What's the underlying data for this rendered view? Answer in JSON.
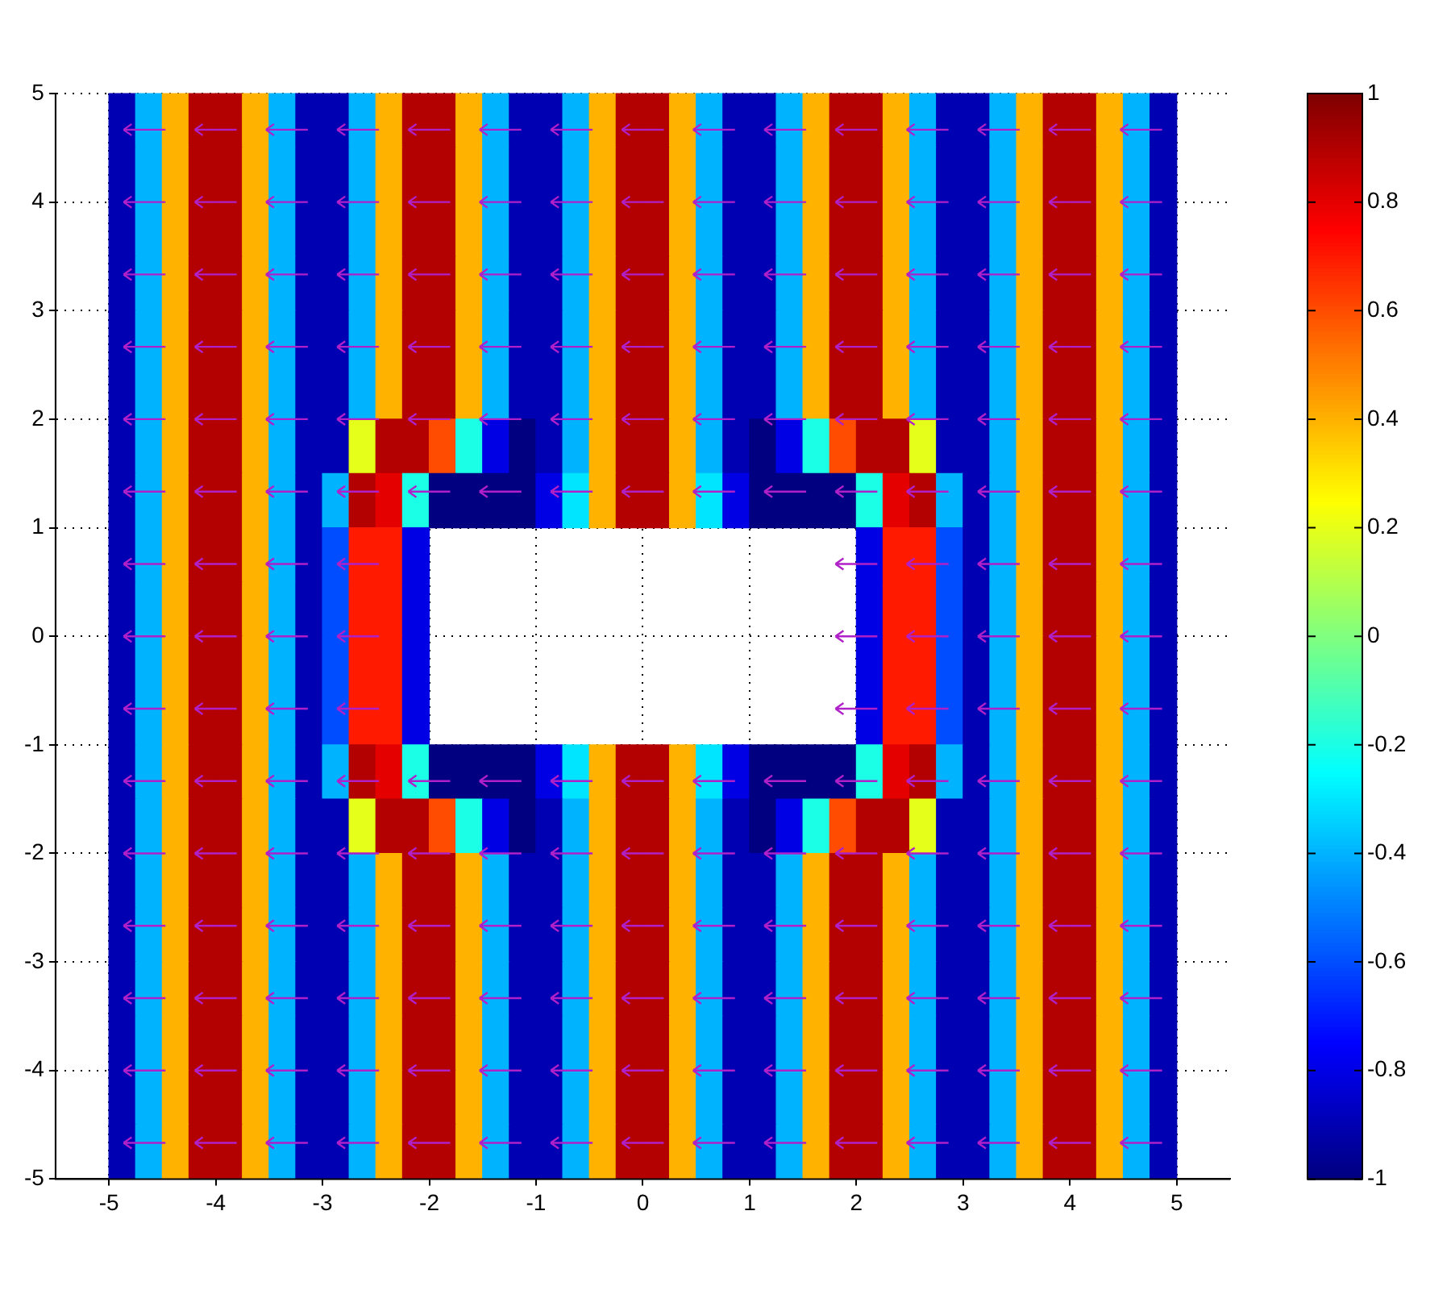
{
  "chart_data": {
    "type": "heatmap",
    "x": [
      -4.875,
      -4.625,
      -4.375,
      -4.125,
      -3.875,
      -3.625,
      -3.375,
      -3.125,
      -2.875,
      -2.625,
      -2.375,
      -2.125,
      -1.875,
      -1.625,
      -1.375,
      -1.125,
      -0.875,
      -0.625,
      -0.375,
      -0.125,
      0.125,
      0.375,
      0.625,
      0.875,
      1.125,
      1.375,
      1.625,
      1.875,
      2.125,
      2.375,
      2.625,
      2.875,
      3.125,
      3.375,
      3.625,
      3.875,
      4.125,
      4.375,
      4.625,
      4.875
    ],
    "y": [
      4.75,
      4.25,
      3.75,
      3.25,
      2.75,
      2.25,
      1.75,
      1.25,
      0.75,
      0.25,
      -0.25,
      -0.75,
      -1.25,
      -1.75,
      -2.25,
      -2.75,
      -3.25,
      -3.75,
      -4.25,
      -4.75
    ],
    "cells": [
      [
        -0.9,
        -0.4,
        0.4,
        0.9,
        0.9,
        0.4,
        -0.4,
        -0.9,
        -0.9,
        -0.4,
        0.4,
        0.9,
        0.9,
        0.4,
        -0.4,
        -0.9,
        -0.9,
        -0.4,
        0.4,
        0.9,
        0.9,
        0.4,
        -0.4,
        -0.9,
        -0.9,
        -0.4,
        0.4,
        0.9,
        0.9,
        0.4,
        -0.4,
        -0.9,
        -0.9,
        -0.4,
        0.4,
        0.9,
        0.9,
        0.4,
        -0.4,
        -0.9
      ],
      [
        -0.9,
        -0.4,
        0.4,
        0.9,
        0.9,
        0.4,
        -0.4,
        -0.9,
        -0.9,
        -0.4,
        0.4,
        0.9,
        0.9,
        0.4,
        -0.4,
        -0.9,
        -0.9,
        -0.4,
        0.4,
        0.9,
        0.9,
        0.4,
        -0.4,
        -0.9,
        -0.9,
        -0.4,
        0.4,
        0.9,
        0.9,
        0.4,
        -0.4,
        -0.9,
        -0.9,
        -0.4,
        0.4,
        0.9,
        0.9,
        0.4,
        -0.4,
        -0.9
      ],
      [
        -0.9,
        -0.4,
        0.4,
        0.9,
        0.9,
        0.4,
        -0.4,
        -0.9,
        -0.9,
        -0.4,
        0.4,
        0.9,
        0.9,
        0.4,
        -0.4,
        -0.9,
        -0.9,
        -0.4,
        0.4,
        0.9,
        0.9,
        0.4,
        -0.4,
        -0.9,
        -0.9,
        -0.4,
        0.4,
        0.9,
        0.9,
        0.4,
        -0.4,
        -0.9,
        -0.9,
        -0.4,
        0.4,
        0.9,
        0.9,
        0.4,
        -0.4,
        -0.9
      ],
      [
        -0.9,
        -0.4,
        0.4,
        0.9,
        0.9,
        0.4,
        -0.4,
        -0.9,
        -0.9,
        -0.4,
        0.4,
        0.9,
        0.9,
        0.4,
        -0.4,
        -0.9,
        -0.9,
        -0.4,
        0.4,
        0.9,
        0.9,
        0.4,
        -0.4,
        -0.9,
        -0.9,
        -0.4,
        0.4,
        0.9,
        0.9,
        0.4,
        -0.4,
        -0.9,
        -0.9,
        -0.4,
        0.4,
        0.9,
        0.9,
        0.4,
        -0.4,
        -0.9
      ],
      [
        -0.9,
        -0.4,
        0.4,
        0.9,
        0.9,
        0.4,
        -0.4,
        -0.9,
        -0.9,
        -0.4,
        0.4,
        0.9,
        0.9,
        0.4,
        -0.4,
        -0.9,
        -0.9,
        -0.4,
        0.4,
        0.9,
        0.9,
        0.4,
        -0.4,
        -0.9,
        -0.9,
        -0.4,
        0.4,
        0.9,
        0.9,
        0.4,
        -0.4,
        -0.9,
        -0.9,
        -0.4,
        0.4,
        0.9,
        0.9,
        0.4,
        -0.4,
        -0.9
      ],
      [
        -0.9,
        -0.4,
        0.4,
        0.9,
        0.9,
        0.4,
        -0.4,
        -0.9,
        -0.9,
        -0.4,
        0.4,
        0.9,
        0.9,
        0.4,
        -0.4,
        -0.9,
        -0.9,
        -0.4,
        0.4,
        0.9,
        0.9,
        0.4,
        -0.4,
        -0.9,
        -0.9,
        -0.4,
        0.4,
        0.9,
        0.9,
        0.4,
        -0.4,
        -0.9,
        -0.9,
        -0.4,
        0.4,
        0.9,
        0.9,
        0.4,
        -0.4,
        -0.9
      ],
      [
        -0.9,
        -0.4,
        0.4,
        0.9,
        0.9,
        0.4,
        -0.4,
        -0.9,
        -0.9,
        0.2,
        0.9,
        0.9,
        0.6,
        -0.2,
        -0.8,
        -1,
        -0.9,
        -0.4,
        0.4,
        0.9,
        0.9,
        0.4,
        -0.4,
        -0.9,
        -1,
        -0.8,
        -0.2,
        0.6,
        0.9,
        0.9,
        0.2,
        -0.9,
        -0.9,
        -0.4,
        0.4,
        0.9,
        0.9,
        0.4,
        -0.4,
        -0.9
      ],
      [
        -0.9,
        -0.4,
        0.4,
        0.9,
        0.9,
        0.4,
        -0.4,
        -0.9,
        -0.4,
        0.9,
        0.8,
        -0.2,
        -1,
        -1,
        -1,
        -1,
        -0.8,
        -0.3,
        0.4,
        0.9,
        0.9,
        0.4,
        -0.3,
        -0.8,
        -1,
        -1,
        -1,
        -1,
        -0.2,
        0.8,
        0.9,
        -0.4,
        -0.9,
        -0.4,
        0.4,
        0.9,
        0.9,
        0.4,
        -0.4,
        -0.9
      ],
      [
        -0.9,
        -0.4,
        0.4,
        0.9,
        0.9,
        0.4,
        -0.4,
        -0.9,
        -0.6,
        0.7,
        0.7,
        -0.8,
        null,
        null,
        null,
        null,
        null,
        null,
        null,
        null,
        null,
        null,
        null,
        null,
        null,
        null,
        null,
        null,
        -0.8,
        0.7,
        0.7,
        -0.6,
        -0.9,
        -0.4,
        0.4,
        0.9,
        0.9,
        0.4,
        -0.4,
        -0.9
      ],
      [
        -0.9,
        -0.4,
        0.4,
        0.9,
        0.9,
        0.4,
        -0.4,
        -0.9,
        -0.6,
        0.7,
        0.7,
        -0.8,
        null,
        null,
        null,
        null,
        null,
        null,
        null,
        null,
        null,
        null,
        null,
        null,
        null,
        null,
        null,
        null,
        -0.8,
        0.7,
        0.7,
        -0.6,
        -0.9,
        -0.4,
        0.4,
        0.9,
        0.9,
        0.4,
        -0.4,
        -0.9
      ],
      [
        -0.9,
        -0.4,
        0.4,
        0.9,
        0.9,
        0.4,
        -0.4,
        -0.9,
        -0.6,
        0.7,
        0.7,
        -0.8,
        null,
        null,
        null,
        null,
        null,
        null,
        null,
        null,
        null,
        null,
        null,
        null,
        null,
        null,
        null,
        null,
        -0.8,
        0.7,
        0.7,
        -0.6,
        -0.9,
        -0.4,
        0.4,
        0.9,
        0.9,
        0.4,
        -0.4,
        -0.9
      ],
      [
        -0.9,
        -0.4,
        0.4,
        0.9,
        0.9,
        0.4,
        -0.4,
        -0.9,
        -0.6,
        0.7,
        0.7,
        -0.8,
        null,
        null,
        null,
        null,
        null,
        null,
        null,
        null,
        null,
        null,
        null,
        null,
        null,
        null,
        null,
        null,
        -0.8,
        0.7,
        0.7,
        -0.6,
        -0.9,
        -0.4,
        0.4,
        0.9,
        0.9,
        0.4,
        -0.4,
        -0.9
      ],
      [
        -0.9,
        -0.4,
        0.4,
        0.9,
        0.9,
        0.4,
        -0.4,
        -0.9,
        -0.4,
        0.9,
        0.8,
        -0.2,
        -1,
        -1,
        -1,
        -1,
        -0.8,
        -0.3,
        0.4,
        0.9,
        0.9,
        0.4,
        -0.3,
        -0.8,
        -1,
        -1,
        -1,
        -1,
        -0.2,
        0.8,
        0.9,
        -0.4,
        -0.9,
        -0.4,
        0.4,
        0.9,
        0.9,
        0.4,
        -0.4,
        -0.9
      ],
      [
        -0.9,
        -0.4,
        0.4,
        0.9,
        0.9,
        0.4,
        -0.4,
        -0.9,
        -0.9,
        0.2,
        0.9,
        0.9,
        0.6,
        -0.2,
        -0.8,
        -1,
        -0.9,
        -0.4,
        0.4,
        0.9,
        0.9,
        0.4,
        -0.4,
        -0.9,
        -1,
        -0.8,
        -0.2,
        0.6,
        0.9,
        0.9,
        0.2,
        -0.9,
        -0.9,
        -0.4,
        0.4,
        0.9,
        0.9,
        0.4,
        -0.4,
        -0.9
      ],
      [
        -0.9,
        -0.4,
        0.4,
        0.9,
        0.9,
        0.4,
        -0.4,
        -0.9,
        -0.9,
        -0.4,
        0.4,
        0.9,
        0.9,
        0.4,
        -0.4,
        -0.9,
        -0.9,
        -0.4,
        0.4,
        0.9,
        0.9,
        0.4,
        -0.4,
        -0.9,
        -0.9,
        -0.4,
        0.4,
        0.9,
        0.9,
        0.4,
        -0.4,
        -0.9,
        -0.9,
        -0.4,
        0.4,
        0.9,
        0.9,
        0.4,
        -0.4,
        -0.9
      ],
      [
        -0.9,
        -0.4,
        0.4,
        0.9,
        0.9,
        0.4,
        -0.4,
        -0.9,
        -0.9,
        -0.4,
        0.4,
        0.9,
        0.9,
        0.4,
        -0.4,
        -0.9,
        -0.9,
        -0.4,
        0.4,
        0.9,
        0.9,
        0.4,
        -0.4,
        -0.9,
        -0.9,
        -0.4,
        0.4,
        0.9,
        0.9,
        0.4,
        -0.4,
        -0.9,
        -0.9,
        -0.4,
        0.4,
        0.9,
        0.9,
        0.4,
        -0.4,
        -0.9
      ],
      [
        -0.9,
        -0.4,
        0.4,
        0.9,
        0.9,
        0.4,
        -0.4,
        -0.9,
        -0.9,
        -0.4,
        0.4,
        0.9,
        0.9,
        0.4,
        -0.4,
        -0.9,
        -0.9,
        -0.4,
        0.4,
        0.9,
        0.9,
        0.4,
        -0.4,
        -0.9,
        -0.9,
        -0.4,
        0.4,
        0.9,
        0.9,
        0.4,
        -0.4,
        -0.9,
        -0.9,
        -0.4,
        0.4,
        0.9,
        0.9,
        0.4,
        -0.4,
        -0.9
      ],
      [
        -0.9,
        -0.4,
        0.4,
        0.9,
        0.9,
        0.4,
        -0.4,
        -0.9,
        -0.9,
        -0.4,
        0.4,
        0.9,
        0.9,
        0.4,
        -0.4,
        -0.9,
        -0.9,
        -0.4,
        0.4,
        0.9,
        0.9,
        0.4,
        -0.4,
        -0.9,
        -0.9,
        -0.4,
        0.4,
        0.9,
        0.9,
        0.4,
        -0.4,
        -0.9,
        -0.9,
        -0.4,
        0.4,
        0.9,
        0.9,
        0.4,
        -0.4,
        -0.9
      ],
      [
        -0.9,
        -0.4,
        0.4,
        0.9,
        0.9,
        0.4,
        -0.4,
        -0.9,
        -0.9,
        -0.4,
        0.4,
        0.9,
        0.9,
        0.4,
        -0.4,
        -0.9,
        -0.9,
        -0.4,
        0.4,
        0.9,
        0.9,
        0.4,
        -0.4,
        -0.9,
        -0.9,
        -0.4,
        0.4,
        0.9,
        0.9,
        0.4,
        -0.4,
        -0.9,
        -0.9,
        -0.4,
        0.4,
        0.9,
        0.9,
        0.4,
        -0.4,
        -0.9
      ],
      [
        -0.9,
        -0.4,
        0.4,
        0.9,
        0.9,
        0.4,
        -0.4,
        -0.9,
        -0.9,
        -0.4,
        0.4,
        0.9,
        0.9,
        0.4,
        -0.4,
        -0.9,
        -0.9,
        -0.4,
        0.4,
        0.9,
        0.9,
        0.4,
        -0.4,
        -0.9,
        -0.9,
        -0.4,
        0.4,
        0.9,
        0.9,
        0.4,
        -0.4,
        -0.9,
        -0.9,
        -0.4,
        0.4,
        0.9,
        0.9,
        0.4,
        -0.4,
        -0.9
      ]
    ],
    "clim": [
      -1,
      1
    ],
    "cticks": [
      {
        "value": -1,
        "label": "-1"
      },
      {
        "value": -0.8,
        "label": "-0.8"
      },
      {
        "value": -0.6,
        "label": "-0.6"
      },
      {
        "value": -0.4,
        "label": "-0.4"
      },
      {
        "value": -0.2,
        "label": "-0.2"
      },
      0,
      {
        "value": 0.2,
        "label": "0.2"
      },
      {
        "value": 0.4,
        "label": "0.4"
      },
      {
        "value": 0.6,
        "label": "0.6"
      },
      {
        "value": 0.8,
        "label": "0.8"
      },
      1
    ],
    "xlim": [
      -5.5,
      5.5
    ],
    "ylim": [
      -5,
      5
    ],
    "xticks": [
      -5,
      -4,
      -3,
      -2,
      -1,
      0,
      1,
      2,
      3,
      4,
      5
    ],
    "yticks": [
      -5,
      -4,
      -3,
      -2,
      -1,
      0,
      1,
      2,
      3,
      4,
      5
    ],
    "grid": true
  }
}
